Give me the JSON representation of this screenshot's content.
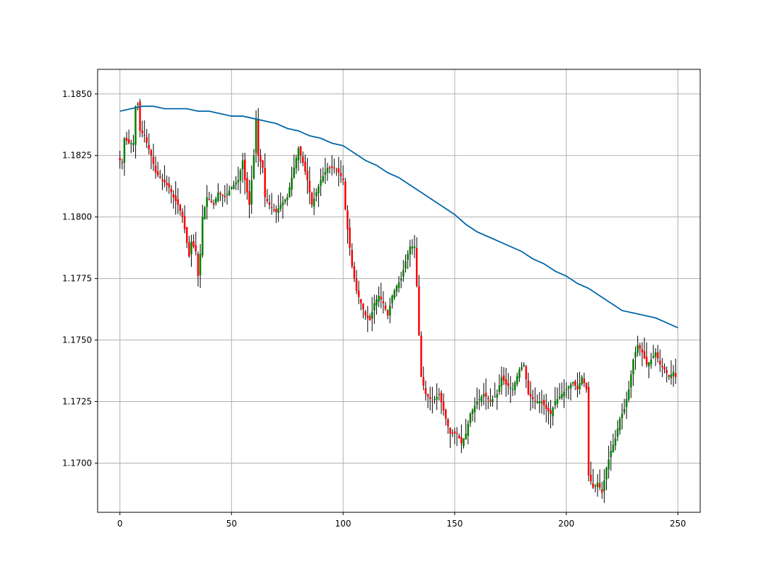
{
  "chart_data": {
    "type": "candlestick",
    "title": "",
    "xlabel": "",
    "ylabel": "",
    "xlim": [
      -10,
      260
    ],
    "ylim": [
      1.168,
      1.186
    ],
    "x_ticks": [
      0,
      50,
      100,
      150,
      200,
      250
    ],
    "y_ticks": [
      1.17,
      1.1725,
      1.175,
      1.1775,
      1.18,
      1.1825,
      1.185
    ],
    "x_tick_labels": [
      "0",
      "50",
      "100",
      "150",
      "200",
      "250"
    ],
    "y_tick_labels": [
      "1.1700",
      "1.1725",
      "1.1750",
      "1.1775",
      "1.1800",
      "1.1825",
      "1.1850"
    ],
    "grid": true,
    "colors": {
      "bullish": "#008000",
      "bearish": "#ff0000",
      "wick": "#000000",
      "moving_average": "#0066a8",
      "grid": "#b0b0b0",
      "axes": "#000000"
    },
    "close_anchors": [
      [
        0,
        1.1823
      ],
      [
        1,
        1.1822
      ],
      [
        2,
        1.1832
      ],
      [
        4,
        1.183
      ],
      [
        6,
        1.183
      ],
      [
        7,
        1.1845
      ],
      [
        8,
        1.1846
      ],
      [
        9,
        1.1835
      ],
      [
        11,
        1.1833
      ],
      [
        12,
        1.183
      ],
      [
        14,
        1.1825
      ],
      [
        16,
        1.1818
      ],
      [
        19,
        1.1815
      ],
      [
        22,
        1.1812
      ],
      [
        24,
        1.1808
      ],
      [
        26,
        1.1805
      ],
      [
        28,
        1.18
      ],
      [
        29,
        1.1795
      ],
      [
        31,
        1.1784
      ],
      [
        32,
        1.179
      ],
      [
        34,
        1.1786
      ],
      [
        35,
        1.1776
      ],
      [
        36,
        1.1785
      ],
      [
        37,
        1.18
      ],
      [
        39,
        1.1808
      ],
      [
        42,
        1.1805
      ],
      [
        44,
        1.181
      ],
      [
        47,
        1.1808
      ],
      [
        50,
        1.1812
      ],
      [
        53,
        1.1815
      ],
      [
        55,
        1.1823
      ],
      [
        56,
        1.1815
      ],
      [
        58,
        1.1805
      ],
      [
        60,
        1.1825
      ],
      [
        61,
        1.184
      ],
      [
        62,
        1.1825
      ],
      [
        64,
        1.182
      ],
      [
        65,
        1.1808
      ],
      [
        67,
        1.1805
      ],
      [
        70,
        1.1802
      ],
      [
        72,
        1.1805
      ],
      [
        75,
        1.1808
      ],
      [
        78,
        1.182
      ],
      [
        80,
        1.1828
      ],
      [
        82,
        1.1822
      ],
      [
        84,
        1.1815
      ],
      [
        86,
        1.1805
      ],
      [
        88,
        1.181
      ],
      [
        90,
        1.1815
      ],
      [
        93,
        1.182
      ],
      [
        96,
        1.182
      ],
      [
        98,
        1.1818
      ],
      [
        100,
        1.1815
      ],
      [
        101,
        1.1803
      ],
      [
        102,
        1.1795
      ],
      [
        104,
        1.178
      ],
      [
        106,
        1.177
      ],
      [
        108,
        1.1765
      ],
      [
        110,
        1.176
      ],
      [
        112,
        1.1758
      ],
      [
        114,
        1.1765
      ],
      [
        116,
        1.1768
      ],
      [
        118,
        1.1765
      ],
      [
        120,
        1.176
      ],
      [
        122,
        1.1768
      ],
      [
        124,
        1.1772
      ],
      [
        126,
        1.1775
      ],
      [
        128,
        1.1782
      ],
      [
        130,
        1.1788
      ],
      [
        132,
        1.1788
      ],
      [
        133,
        1.1772
      ],
      [
        134,
        1.1752
      ],
      [
        135,
        1.1735
      ],
      [
        137,
        1.1728
      ],
      [
        140,
        1.1725
      ],
      [
        143,
        1.1728
      ],
      [
        146,
        1.1718
      ],
      [
        148,
        1.1712
      ],
      [
        151,
        1.1712
      ],
      [
        153,
        1.1708
      ],
      [
        155,
        1.1712
      ],
      [
        157,
        1.172
      ],
      [
        160,
        1.1725
      ],
      [
        163,
        1.1728
      ],
      [
        166,
        1.1725
      ],
      [
        169,
        1.1728
      ],
      [
        171,
        1.1735
      ],
      [
        173,
        1.1732
      ],
      [
        176,
        1.173
      ],
      [
        179,
        1.1738
      ],
      [
        181,
        1.174
      ],
      [
        183,
        1.1728
      ],
      [
        186,
        1.1725
      ],
      [
        189,
        1.1725
      ],
      [
        191,
        1.1722
      ],
      [
        193,
        1.172
      ],
      [
        195,
        1.1725
      ],
      [
        198,
        1.1728
      ],
      [
        200,
        1.173
      ],
      [
        203,
        1.1733
      ],
      [
        205,
        1.173
      ],
      [
        207,
        1.1735
      ],
      [
        209,
        1.173
      ],
      [
        210,
        1.1695
      ],
      [
        212,
        1.169
      ],
      [
        214,
        1.1692
      ],
      [
        216,
        1.1688
      ],
      [
        218,
        1.1698
      ],
      [
        220,
        1.1705
      ],
      [
        222,
        1.171
      ],
      [
        224,
        1.1718
      ],
      [
        226,
        1.1722
      ],
      [
        228,
        1.173
      ],
      [
        230,
        1.1742
      ],
      [
        232,
        1.1748
      ],
      [
        234,
        1.1745
      ],
      [
        236,
        1.174
      ],
      [
        238,
        1.1742
      ],
      [
        240,
        1.1745
      ],
      [
        242,
        1.174
      ],
      [
        244,
        1.1738
      ],
      [
        246,
        1.1735
      ],
      [
        248,
        1.1737
      ],
      [
        249,
        1.1735
      ]
    ],
    "moving_average": [
      [
        0,
        1.1843
      ],
      [
        5,
        1.1844
      ],
      [
        10,
        1.1845
      ],
      [
        15,
        1.1845
      ],
      [
        20,
        1.1844
      ],
      [
        25,
        1.1844
      ],
      [
        30,
        1.1844
      ],
      [
        35,
        1.1843
      ],
      [
        40,
        1.1843
      ],
      [
        45,
        1.1842
      ],
      [
        50,
        1.1841
      ],
      [
        55,
        1.1841
      ],
      [
        60,
        1.184
      ],
      [
        65,
        1.1839
      ],
      [
        70,
        1.1838
      ],
      [
        75,
        1.1836
      ],
      [
        80,
        1.1835
      ],
      [
        85,
        1.1833
      ],
      [
        90,
        1.1832
      ],
      [
        95,
        1.183
      ],
      [
        100,
        1.1829
      ],
      [
        105,
        1.1826
      ],
      [
        110,
        1.1823
      ],
      [
        115,
        1.1821
      ],
      [
        120,
        1.1818
      ],
      [
        125,
        1.1816
      ],
      [
        130,
        1.1813
      ],
      [
        135,
        1.181
      ],
      [
        140,
        1.1807
      ],
      [
        145,
        1.1804
      ],
      [
        150,
        1.1801
      ],
      [
        155,
        1.1797
      ],
      [
        160,
        1.1794
      ],
      [
        165,
        1.1792
      ],
      [
        170,
        1.179
      ],
      [
        175,
        1.1788
      ],
      [
        180,
        1.1786
      ],
      [
        185,
        1.1783
      ],
      [
        190,
        1.1781
      ],
      [
        195,
        1.1778
      ],
      [
        200,
        1.1776
      ],
      [
        205,
        1.1773
      ],
      [
        210,
        1.1771
      ],
      [
        215,
        1.1768
      ],
      [
        220,
        1.1765
      ],
      [
        225,
        1.1762
      ],
      [
        230,
        1.1761
      ],
      [
        235,
        1.176
      ],
      [
        240,
        1.1759
      ],
      [
        245,
        1.1757
      ],
      [
        250,
        1.1755
      ]
    ]
  }
}
